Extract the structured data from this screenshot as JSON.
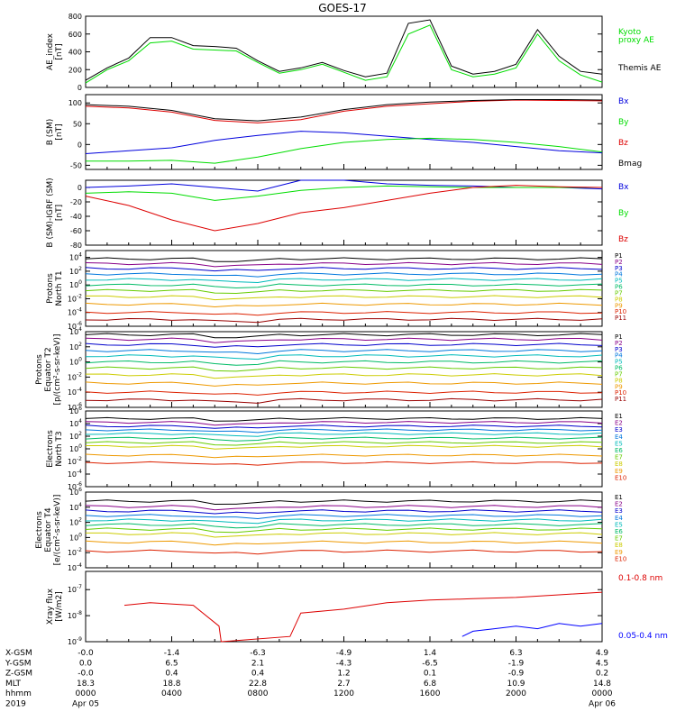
{
  "chart_data": {
    "type": "line",
    "title": "GOES-17",
    "colors": {
      "kyoto": "#00dd00",
      "themis": "#000000",
      "Bx": "#0000dd",
      "By": "#00dd00",
      "Bz": "#dd0000",
      "Bmag": "#000000",
      "xray_long": "#dd0000",
      "xray_short": "#0000ff",
      "channels": [
        "#000000",
        "#880088",
        "#0000cc",
        "#0077dd",
        "#00bbbb",
        "#00bb66",
        "#66cc00",
        "#cccc00",
        "#ee9900",
        "#dd2200",
        "#990000"
      ]
    },
    "panels": [
      {
        "id": "ae",
        "ylabel": [
          "AE_index",
          "[nT]"
        ],
        "ylim": [
          0,
          800
        ],
        "yticks": [
          "800",
          "600",
          "400",
          "200",
          "0"
        ],
        "legend": [
          "Kyoto",
          "proxy AE",
          "Themis AE"
        ],
        "series": [
          {
            "name": "Kyoto proxy AE",
            "key": "kyoto",
            "x": [
              0,
              1,
              2,
              3,
              4,
              5,
              6,
              7,
              8,
              9,
              10,
              11,
              12,
              13,
              14,
              15,
              16,
              17,
              18,
              19,
              20,
              21,
              22,
              23,
              24
            ],
            "values": [
              50,
              200,
              300,
              500,
              520,
              430,
              420,
              410,
              280,
              160,
              200,
              260,
              170,
              80,
              120,
              600,
              700,
              200,
              120,
              150,
              220,
              600,
              300,
              140,
              60
            ]
          },
          {
            "name": "Themis AE",
            "key": "themis",
            "x": [
              0,
              1,
              2,
              3,
              4,
              5,
              6,
              7,
              8,
              9,
              10,
              11,
              12,
              13,
              14,
              15,
              16,
              17,
              18,
              19,
              20,
              21,
              22,
              23,
              24
            ],
            "values": [
              80,
              220,
              330,
              560,
              560,
              470,
              460,
              440,
              300,
              180,
              220,
              280,
              190,
              120,
              160,
              720,
              760,
              240,
              150,
              180,
              260,
              650,
              350,
              180,
              150
            ]
          }
        ]
      },
      {
        "id": "bsm",
        "ylabel": [
          "B (SM)",
          "[nT]"
        ],
        "ylim": [
          -60,
          120
        ],
        "yticks": [
          "100",
          "50",
          "0",
          "-50"
        ],
        "legend": [
          "Bx",
          "By",
          "Bz",
          "Bmag"
        ],
        "series": [
          {
            "name": "Bx",
            "key": "Bx",
            "x": [
              0,
              2,
              4,
              6,
              8,
              10,
              12,
              14,
              16,
              18,
              20,
              22,
              24
            ],
            "values": [
              -22,
              -15,
              -8,
              10,
              22,
              32,
              28,
              20,
              12,
              5,
              -5,
              -15,
              -20
            ]
          },
          {
            "name": "By",
            "key": "By",
            "x": [
              0,
              2,
              4,
              6,
              8,
              10,
              12,
              14,
              16,
              18,
              20,
              22,
              24
            ],
            "values": [
              -40,
              -40,
              -38,
              -45,
              -30,
              -10,
              5,
              12,
              15,
              12,
              5,
              -5,
              -18
            ]
          },
          {
            "name": "Bz",
            "key": "Bz",
            "x": [
              0,
              2,
              4,
              6,
              8,
              10,
              12,
              14,
              16,
              18,
              20,
              22,
              24
            ],
            "values": [
              92,
              88,
              78,
              58,
              52,
              60,
              80,
              92,
              98,
              104,
              107,
              106,
              105
            ]
          },
          {
            "name": "Bmag",
            "key": "Bmag",
            "x": [
              0,
              2,
              4,
              6,
              8,
              10,
              12,
              14,
              16,
              18,
              20,
              22,
              24
            ],
            "values": [
              96,
              92,
              82,
              62,
              57,
              66,
              84,
              96,
              102,
              106,
              108,
              108,
              107
            ]
          }
        ]
      },
      {
        "id": "bigrf",
        "ylabel": [
          "B (SM)-IGRF (SM)",
          "[nT]"
        ],
        "ylim": [
          -80,
          10
        ],
        "yticks": [
          "0",
          "-20",
          "-40",
          "-60",
          "-80"
        ],
        "legend": [
          "Bx",
          "By",
          "Bz"
        ],
        "series": [
          {
            "name": "Bx",
            "key": "Bx",
            "x": [
              0,
              2,
              4,
              6,
              8,
              10,
              12,
              14,
              16,
              18,
              20,
              22,
              24
            ],
            "values": [
              0,
              2,
              5,
              0,
              -5,
              10,
              12,
              5,
              3,
              2,
              0,
              0,
              -2
            ]
          },
          {
            "name": "By",
            "key": "By",
            "x": [
              0,
              2,
              4,
              6,
              8,
              10,
              12,
              14,
              16,
              18,
              20,
              22,
              24
            ],
            "values": [
              -8,
              -6,
              -8,
              -18,
              -12,
              -4,
              0,
              2,
              1,
              0,
              0,
              0,
              0
            ]
          },
          {
            "name": "Bz",
            "key": "Bz",
            "x": [
              0,
              2,
              4,
              6,
              8,
              10,
              12,
              14,
              16,
              18,
              20,
              22,
              24
            ],
            "values": [
              -12,
              -25,
              -45,
              -60,
              -50,
              -35,
              -28,
              -18,
              -8,
              0,
              3,
              1,
              0
            ]
          }
        ]
      },
      {
        "id": "p1",
        "ylabel": [
          "Protons",
          "North T1"
        ],
        "log": true,
        "ylim": [
          -6,
          5
        ],
        "yticks": [
          "10^4",
          "10^2",
          "10^0",
          "10^-2",
          "10^-4",
          "10^-6"
        ],
        "legend": [
          "P1",
          "P2",
          "P3",
          "P4",
          "P5",
          "P6",
          "P7",
          "P8",
          "P9",
          "P10",
          "P11"
        ],
        "levels": [
          3.8,
          3.1,
          2.4,
          1.6,
          0.8,
          0.0,
          -0.8,
          -1.7,
          -2.8,
          -4.0,
          -5.0
        ]
      },
      {
        "id": "p2",
        "ylabel": [
          "Protons",
          "Equator T2",
          "[p/(cm²-s-sr-keV)]"
        ],
        "log": true,
        "ylim": [
          -6,
          4
        ],
        "yticks": [
          "10^4",
          "10^2",
          "10^0",
          "10^-2",
          "10^-4",
          "10^-6"
        ],
        "legend": [
          "P1",
          "P2",
          "P3",
          "P4",
          "P5",
          "P6",
          "P7",
          "P8",
          "P9",
          "P10",
          "P11"
        ],
        "levels": [
          3.6,
          3.0,
          2.3,
          1.5,
          0.8,
          0.0,
          -0.8,
          -1.7,
          -2.8,
          -4.0,
          -5.0
        ]
      },
      {
        "id": "e1",
        "ylabel": [
          "Electrons",
          "North T3"
        ],
        "log": true,
        "ylim": [
          -6,
          6
        ],
        "yticks": [
          "10^6",
          "10^4",
          "10^2",
          "10^0",
          "10^-2",
          "10^-4",
          "10^-6"
        ],
        "legend": [
          "E1",
          "E2",
          "E3",
          "E4",
          "E5",
          "E6",
          "E7",
          "E8",
          "E9",
          "E10"
        ],
        "levels": [
          4.8,
          4.2,
          3.6,
          3.0,
          2.4,
          1.7,
          1.0,
          0.4,
          -1.0,
          -2.2
        ]
      },
      {
        "id": "e2",
        "ylabel": [
          "Electrons",
          "Equator T4",
          "[e/(cm²-s-sr-keV)]"
        ],
        "log": true,
        "ylim": [
          -4,
          6
        ],
        "yticks": [
          "10^6",
          "10^4",
          "10^2",
          "10^0",
          "10^-2",
          "10^-4"
        ],
        "legend": [
          "E1",
          "E2",
          "E3",
          "E4",
          "E5",
          "E6",
          "E7",
          "E8",
          "E9",
          "E10"
        ],
        "levels": [
          4.8,
          4.1,
          3.5,
          2.9,
          2.3,
          1.7,
          1.1,
          0.5,
          -0.6,
          -1.8
        ]
      },
      {
        "id": "xray",
        "ylabel": [
          "Xray flux",
          "[W/m2]"
        ],
        "log": true,
        "ylim": [
          -9,
          -6.3
        ],
        "yticks": [
          "10^-7",
          "10^-8",
          "10^-9"
        ],
        "legend": [
          "0.1-0.8 nm",
          "0.05-0.4 nm"
        ],
        "series": [
          {
            "name": "0.1-0.8 nm",
            "key": "xray_long",
            "x": [
              1.8,
              3,
              5,
              6.2,
              6.3,
              9.5,
              10,
              12,
              14,
              16,
              18,
              20,
              22,
              24
            ],
            "values": [
              -7.6,
              -7.5,
              -7.6,
              -8.4,
              -9,
              -8.8,
              -7.9,
              -7.75,
              -7.5,
              -7.4,
              -7.35,
              -7.3,
              -7.2,
              -7.1
            ]
          },
          {
            "name": "0.05-0.4 nm",
            "key": "xray_short",
            "x": [
              17.5,
              18,
              19,
              20,
              21,
              22,
              23,
              24
            ],
            "values": [
              -8.8,
              -8.6,
              -8.5,
              -8.4,
              -8.5,
              -8.3,
              -8.4,
              -8.3
            ]
          }
        ]
      }
    ],
    "x_axis": {
      "range": [
        0,
        24
      ],
      "row_labels": [
        "X-GSM",
        "Y-GSM",
        "Z-GSM",
        "MLT",
        "hhmm",
        "2019"
      ],
      "columns": [
        {
          "x": 0,
          "values": [
            "-0.0",
            "0.0",
            "-0.0",
            "18.3",
            "0000",
            "Apr 05"
          ]
        },
        {
          "x": 4,
          "values": [
            "-1.4",
            "6.5",
            "0.4",
            "18.8",
            "0400",
            ""
          ]
        },
        {
          "x": 8,
          "values": [
            "-6.3",
            "2.1",
            "0.4",
            "22.8",
            "0800",
            ""
          ]
        },
        {
          "x": 12,
          "values": [
            "-4.9",
            "-4.3",
            "1.2",
            "2.7",
            "1200",
            ""
          ]
        },
        {
          "x": 16,
          "values": [
            "1.4",
            "-6.5",
            "0.1",
            "6.8",
            "1600",
            ""
          ]
        },
        {
          "x": 20,
          "values": [
            "6.3",
            "-1.9",
            "-0.9",
            "10.9",
            "2000",
            ""
          ]
        },
        {
          "x": 24,
          "values": [
            "4.9",
            "4.5",
            "0.2",
            "14.8",
            "0000",
            "Apr 06"
          ]
        }
      ]
    }
  }
}
